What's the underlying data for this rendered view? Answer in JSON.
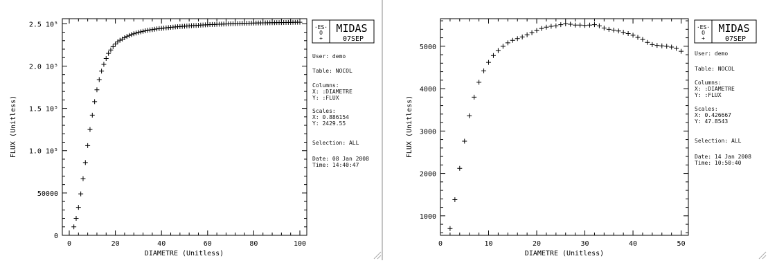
{
  "panels": [
    {
      "logo": {
        "brand": "MIDAS",
        "version": "07SEP",
        "mark": "ES O"
      },
      "info": {
        "user": "User: demo",
        "table": "Table: NOCOL",
        "columns_title": "Columns:",
        "col_x": "X: :DIAMETRE",
        "col_y": "Y: :FLUX",
        "scales_title": "Scales:",
        "scale_x": "X: 0.886154",
        "scale_y": "Y: 2429.55",
        "selection": "Selection:  ALL",
        "date": "Date: 08 Jan 2008",
        "time": "Time: 14:40:47"
      }
    },
    {
      "logo": {
        "brand": "MIDAS",
        "version": "07SEP",
        "mark": "ES O"
      },
      "info": {
        "user": "User: demo",
        "table": "Table: NOCOL",
        "columns_title": "Columns:",
        "col_x": "X: :DIAMETRE",
        "col_y": "Y: :FLUX",
        "scales_title": "Scales:",
        "scale_x": "X: 0.426667",
        "scale_y": "Y: 47.8543",
        "selection": "Selection:  ALL",
        "date": "Date: 14 Jan 2008",
        "time": "Time: 10:50:40"
      }
    }
  ],
  "chart_data": [
    {
      "type": "scatter",
      "marker": "+",
      "xlabel": "DIAMETRE (Unitless)",
      "ylabel": "FLUX (Unitless)",
      "xlim": [
        -3,
        103
      ],
      "ylim": [
        0,
        256000
      ],
      "x_ticks": [
        0,
        20,
        40,
        60,
        80,
        100
      ],
      "x_tick_labels": [
        "0",
        "20",
        "40",
        "60",
        "80",
        "100"
      ],
      "y_ticks": [
        0,
        50000,
        100000,
        150000,
        200000,
        250000
      ],
      "y_tick_labels": [
        "0",
        "50000",
        "1.0 10⁵",
        "1.5 10⁵",
        "2.0 10⁵",
        "2.5 10⁵"
      ],
      "x": [
        2,
        3,
        4,
        5,
        6,
        7,
        8,
        9,
        10,
        11,
        12,
        13,
        14,
        15,
        16,
        17,
        18,
        19,
        20,
        21,
        22,
        23,
        24,
        25,
        26,
        27,
        28,
        29,
        30,
        31,
        32,
        33,
        34,
        35,
        36,
        37,
        38,
        39,
        40,
        41,
        42,
        43,
        44,
        45,
        46,
        47,
        48,
        49,
        50,
        51,
        52,
        53,
        54,
        55,
        56,
        57,
        58,
        59,
        60,
        61,
        62,
        63,
        64,
        65,
        66,
        67,
        68,
        69,
        70,
        71,
        72,
        73,
        74,
        75,
        76,
        77,
        78,
        79,
        80,
        81,
        82,
        83,
        84,
        85,
        86,
        87,
        88,
        89,
        90,
        91,
        92,
        93,
        94,
        95,
        96,
        97,
        98,
        99,
        100
      ],
      "y": [
        10000,
        20000,
        33000,
        49000,
        67000,
        86000,
        106000,
        125000,
        142000,
        158000,
        172000,
        184000,
        194000,
        202000,
        209000,
        215000,
        219000,
        223000,
        226000,
        228500,
        230500,
        232000,
        233500,
        235000,
        236200,
        237300,
        238200,
        239000,
        239800,
        240500,
        241100,
        241700,
        242200,
        242700,
        243100,
        243500,
        243900,
        244300,
        244600,
        244900,
        245200,
        245500,
        245800,
        246000,
        246300,
        246500,
        246700,
        246900,
        247100,
        247300,
        247500,
        247700,
        247900,
        248000,
        248200,
        248400,
        248500,
        248700,
        248800,
        249000,
        249100,
        249200,
        249400,
        249500,
        249600,
        249700,
        249800,
        249900,
        250000,
        250100,
        250200,
        250300,
        250400,
        250500,
        250550,
        250600,
        250700,
        250750,
        250800,
        250900,
        250950,
        251000,
        251050,
        251100,
        251150,
        251200,
        251250,
        251300,
        251350,
        251400,
        251450,
        251500,
        251550,
        251600,
        251650,
        251700,
        251750,
        251800,
        251850
      ]
    },
    {
      "type": "scatter",
      "marker": "+",
      "xlabel": "DIAMETRE (Unitless)",
      "ylabel": "FLUX (Unitless)",
      "xlim": [
        0,
        51.5
      ],
      "ylim": [
        540,
        5650
      ],
      "x_ticks": [
        0,
        10,
        20,
        30,
        40,
        50
      ],
      "x_tick_labels": [
        "0",
        "10",
        "20",
        "30",
        "40",
        "50"
      ],
      "y_ticks": [
        1000,
        2000,
        3000,
        4000,
        5000
      ],
      "y_tick_labels": [
        "1000",
        "2000",
        "3000",
        "4000",
        "5000"
      ],
      "x": [
        2,
        3,
        4,
        5,
        6,
        7,
        8,
        9,
        10,
        11,
        12,
        13,
        14,
        15,
        16,
        17,
        18,
        19,
        20,
        21,
        22,
        23,
        24,
        25,
        26,
        27,
        28,
        29,
        30,
        31,
        32,
        33,
        34,
        35,
        36,
        37,
        38,
        39,
        40,
        41,
        42,
        43,
        44,
        45,
        46,
        47,
        48,
        49,
        50
      ],
      "y": [
        700,
        1380,
        2120,
        2760,
        3360,
        3800,
        4150,
        4420,
        4620,
        4780,
        4900,
        5000,
        5080,
        5140,
        5180,
        5220,
        5270,
        5320,
        5370,
        5420,
        5450,
        5470,
        5480,
        5510,
        5530,
        5520,
        5500,
        5500,
        5490,
        5500,
        5510,
        5480,
        5430,
        5400,
        5380,
        5360,
        5330,
        5300,
        5260,
        5210,
        5160,
        5090,
        5040,
        5020,
        5010,
        5000,
        4980,
        4950,
        4880
      ]
    }
  ]
}
